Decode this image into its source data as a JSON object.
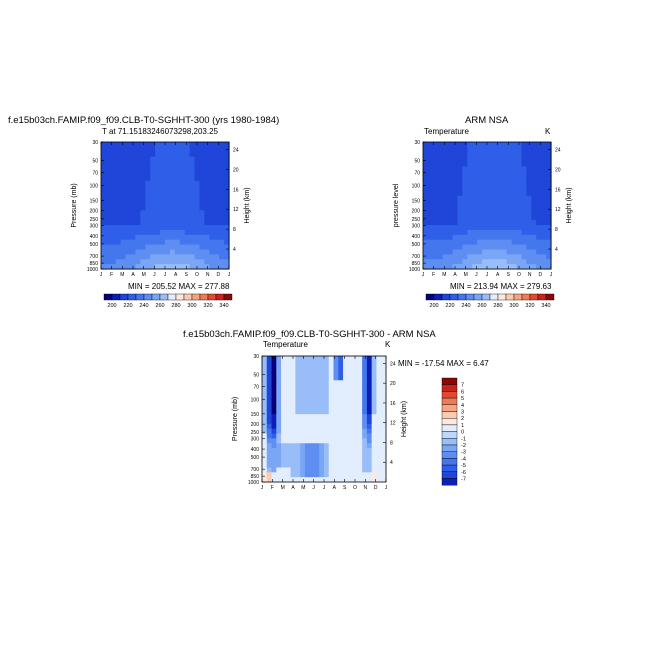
{
  "palette_colors": [
    "#08007a",
    "#0b1fb8",
    "#1f45d9",
    "#2f5fe8",
    "#4477ee",
    "#5e8ef2",
    "#7aa6f5",
    "#99bdf8",
    "#bdd6fb",
    "#e2eefd",
    "#fde8de",
    "#fbcab0",
    "#f6a582",
    "#ee7a56",
    "#e04b2f",
    "#c8231c",
    "#8a0808"
  ],
  "panels": [
    {
      "title": "f.e15b03ch.FAMIP.f09_f09.CLB-T0-SGHHT-300 (yrs 1980-1984)",
      "left_label": "T at 71.15183246073298,203.25",
      "right_label": "",
      "ylabel": "Pressure (mb)",
      "ylabel_right": "Height (km)",
      "stats": "MIN = 205.52  MAX = 277.88"
    },
    {
      "title": "ARM NSA",
      "left_label": "Temperature",
      "right_label": "K",
      "ylabel": "pressure level",
      "ylabel_right": "Height (km)",
      "stats": "MIN = 213.94  MAX = 279.63"
    },
    {
      "title": "f.e15b03ch.FAMIP.f09_f09.CLB-T0-SGHHT-300 - ARM NSA",
      "left_label": "Temperature",
      "right_label": "K",
      "ylabel": "Pressure (mb)",
      "ylabel_right": "Height (km)",
      "stats": "MIN = -17.54  MAX =    6.47"
    }
  ],
  "chart_data": [
    {
      "type": "heatmap",
      "title": "f.e15b03ch.FAMIP.f09_f09.CLB-T0-SGHHT-300 (yrs 1980-1984)",
      "subtitle": "T at 71.15183246073298,203.25",
      "xlabel": "",
      "ylabel": "Pressure (mb)",
      "ylabel_right": "Height (km)",
      "x": [
        "J",
        "F",
        "M",
        "A",
        "M",
        "J",
        "J",
        "A",
        "S",
        "O",
        "N",
        "D",
        "J"
      ],
      "y_ticks": [
        "30",
        "50",
        "70",
        "100",
        "150",
        "200",
        "250",
        "300",
        "400",
        "500",
        "700",
        "850",
        "1000"
      ],
      "y_ticks_right": [
        "24",
        "20",
        "16",
        "12",
        "8",
        "4"
      ],
      "colorbar": [
        "200",
        "220",
        "240",
        "260",
        "280",
        "300",
        "320",
        "340"
      ],
      "min": 205.52,
      "max": 277.88
    },
    {
      "type": "heatmap",
      "title": "ARM NSA",
      "subtitle": "Temperature",
      "units": "K",
      "xlabel": "",
      "ylabel": "pressure level",
      "ylabel_right": "Height (km)",
      "x": [
        "J",
        "F",
        "M",
        "A",
        "M",
        "J",
        "J",
        "A",
        "S",
        "O",
        "N",
        "D",
        "J"
      ],
      "y_ticks": [
        "30",
        "50",
        "70",
        "100",
        "150",
        "200",
        "250",
        "300",
        "400",
        "500",
        "700",
        "850",
        "1000"
      ],
      "y_ticks_right": [
        "24",
        "20",
        "16",
        "12",
        "8",
        "4"
      ],
      "colorbar": [
        "200",
        "220",
        "240",
        "260",
        "280",
        "300",
        "320",
        "340"
      ],
      "min": 213.94,
      "max": 279.63
    },
    {
      "type": "heatmap",
      "title": "f.e15b03ch.FAMIP.f09_f09.CLB-T0-SGHHT-300 - ARM NSA",
      "subtitle": "Temperature",
      "units": "K",
      "xlabel": "",
      "ylabel": "Pressure (mb)",
      "ylabel_right": "Height (km)",
      "x": [
        "J",
        "F",
        "M",
        "A",
        "M",
        "J",
        "J",
        "A",
        "S",
        "O",
        "N",
        "D",
        "J"
      ],
      "y_ticks": [
        "30",
        "50",
        "70",
        "100",
        "150",
        "200",
        "250",
        "300",
        "400",
        "500",
        "700",
        "850",
        "1000"
      ],
      "y_ticks_right": [
        "24",
        "20",
        "16",
        "12",
        "8",
        "4"
      ],
      "colorbar": [
        "7",
        "6",
        "5",
        "4",
        "3",
        "2",
        "1",
        "0",
        "-1",
        "-2",
        "-3",
        "-4",
        "-5",
        "-6",
        "-7"
      ],
      "min": -17.54,
      "max": 6.47
    }
  ]
}
